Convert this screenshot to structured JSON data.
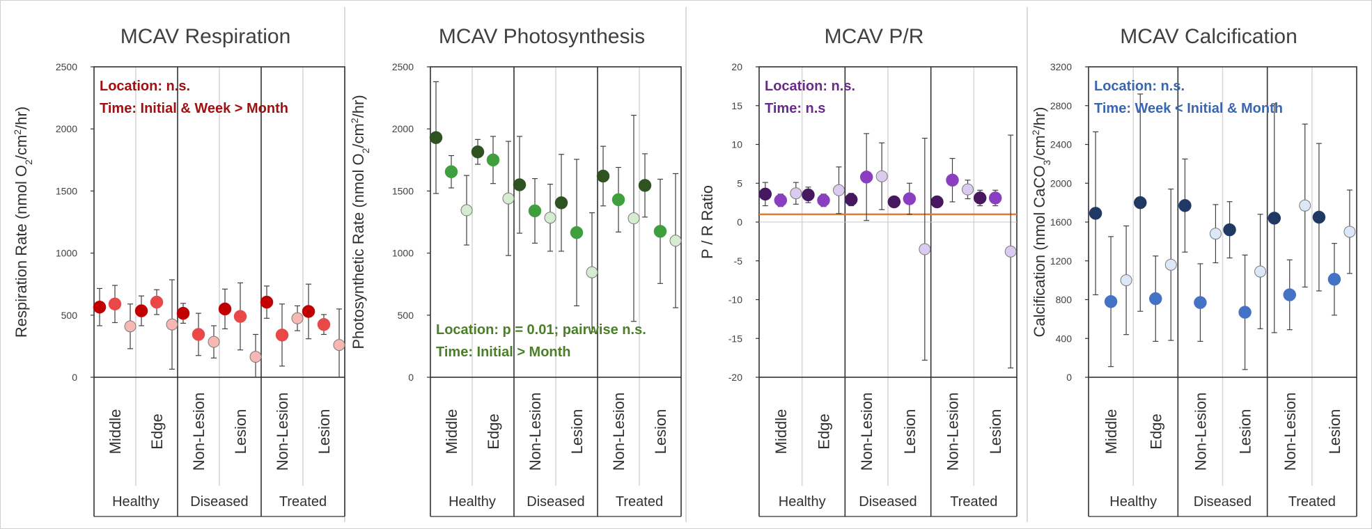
{
  "chart_data": [
    {
      "type": "scatter",
      "title": "MCAV Respiration",
      "ylabel": "Respiration Rate (nmol O",
      "ylabel_sub": "2",
      "ylabel_mid": "/cm",
      "ylabel_sup": "2",
      "ylabel_end": "/hr)",
      "ylim": [
        0,
        2500
      ],
      "yticks": [
        0,
        500,
        1000,
        1500,
        2000,
        2500
      ],
      "groups": [
        "Healthy",
        "Diseased",
        "Treated"
      ],
      "categories": [
        "Middle",
        "Edge",
        "Non-Lesion",
        "Lesion",
        "Non-Lesion",
        "Lesion"
      ],
      "colors": [
        "#c00000",
        "#e84848",
        "#f7b7b2"
      ],
      "annotations": [
        {
          "text": "Location: n.s.",
          "color": "#a01010"
        },
        {
          "text": "Time: Initial & Week > Month",
          "color": "#a01010"
        }
      ],
      "series": [
        {
          "name": "Initial",
          "values": [
            565,
            535,
            515,
            550,
            605,
            530
          ],
          "err": [
            150,
            120,
            80,
            160,
            130,
            220
          ]
        },
        {
          "name": "Week",
          "values": [
            590,
            605,
            345,
            490,
            340,
            425
          ],
          "err": [
            150,
            100,
            170,
            270,
            250,
            80
          ]
        },
        {
          "name": "Month",
          "values": [
            410,
            425,
            285,
            165,
            475,
            260
          ],
          "err": [
            180,
            360,
            130,
            180,
            100,
            290
          ]
        }
      ]
    },
    {
      "type": "scatter",
      "title": "MCAV Photosynthesis",
      "ylabel": "Photosynthetic Rate (nmol O",
      "ylabel_sub": "2",
      "ylabel_mid": "/cm",
      "ylabel_sup": "2",
      "ylabel_end": "/hr)",
      "ylim": [
        0,
        2500
      ],
      "yticks": [
        0,
        500,
        1000,
        1500,
        2000,
        2500
      ],
      "groups": [
        "Healthy",
        "Diseased",
        "Treated"
      ],
      "categories": [
        "Middle",
        "Edge",
        "Non-Lesion",
        "Lesion",
        "Non-Lesion",
        "Lesion"
      ],
      "colors": [
        "#2f5223",
        "#3f9f3f",
        "#d5ecd0"
      ],
      "annotations": [
        {
          "text": "Location: p = 0.01; pairwise n.s.",
          "color": "#4a7f28"
        },
        {
          "text": "Time: Initial > Month",
          "color": "#4a7f28"
        }
      ],
      "series": [
        {
          "name": "Initial",
          "values": [
            1930,
            1815,
            1550,
            1405,
            1620,
            1545
          ],
          "err": [
            450,
            100,
            390,
            390,
            240,
            255
          ]
        },
        {
          "name": "Week",
          "values": [
            1655,
            1750,
            1340,
            1165,
            1430,
            1175
          ],
          "err": [
            130,
            190,
            260,
            590,
            260,
            420
          ]
        },
        {
          "name": "Month",
          "values": [
            1345,
            1440,
            1285,
            845,
            1280,
            1100
          ],
          "err": [
            280,
            460,
            270,
            480,
            830,
            540
          ]
        }
      ]
    },
    {
      "type": "scatter",
      "title": "MCAV P/R",
      "ylabel": "P / R Ratio",
      "ylim": [
        -20,
        20
      ],
      "yticks": [
        -20,
        -15,
        -10,
        -5,
        0,
        5,
        10,
        15,
        20
      ],
      "groups": [
        "Healthy",
        "Diseased",
        "Treated"
      ],
      "categories": [
        "Middle",
        "Edge",
        "Non-Lesion",
        "Lesion",
        "Non-Lesion",
        "Lesion"
      ],
      "colors": [
        "#45185f",
        "#8a3fc0",
        "#dccbf0"
      ],
      "reference_line": 1,
      "reference_color": "#e07b39",
      "annotations": [
        {
          "text": "Location: n.s.",
          "color": "#6a2a8a"
        },
        {
          "text": "Time: n.s",
          "color": "#6a2a8a"
        }
      ],
      "series": [
        {
          "name": "Initial",
          "values": [
            3.6,
            3.5,
            2.9,
            2.6,
            2.6,
            3.1
          ],
          "err": [
            1.5,
            1.0,
            0.8,
            0.6,
            0.6,
            1.0
          ]
        },
        {
          "name": "Week",
          "values": [
            2.8,
            2.8,
            5.8,
            3.0,
            5.4,
            3.1
          ],
          "err": [
            0.8,
            0.8,
            5.6,
            2.0,
            2.8,
            1.0
          ]
        },
        {
          "name": "Month",
          "values": [
            3.7,
            4.1,
            5.9,
            -3.5,
            4.2,
            -3.8
          ],
          "err": [
            1.4,
            3.0,
            4.3,
            14.3,
            1.2,
            15.0
          ]
        }
      ]
    },
    {
      "type": "scatter",
      "title": "MCAV Calcification",
      "ylabel": "Calcification (nmol CaCO",
      "ylabel_sub": "3",
      "ylabel_mid": "/cm",
      "ylabel_sup": "2",
      "ylabel_end": "/hr)",
      "ylim": [
        0,
        3200
      ],
      "yticks": [
        0,
        400,
        800,
        1200,
        1600,
        2000,
        2400,
        2800,
        3200
      ],
      "groups": [
        "Healthy",
        "Diseased",
        "Treated"
      ],
      "categories": [
        "Middle",
        "Edge",
        "Non-Lesion",
        "Lesion",
        "Non-Lesion",
        "Lesion"
      ],
      "colors": [
        "#1f3864",
        "#4472c4",
        "#dce8f7"
      ],
      "annotations": [
        {
          "text": "Location: n.s.",
          "color": "#3a66b0"
        },
        {
          "text": "Time: Week < Initial & Month",
          "color": "#3a66b0"
        }
      ],
      "series": [
        {
          "name": "Initial",
          "values": [
            1690,
            1800,
            1770,
            1520,
            1640,
            1650
          ],
          "err": [
            840,
            1120,
            480,
            290,
            1180,
            760
          ]
        },
        {
          "name": "Week",
          "values": [
            780,
            810,
            770,
            670,
            850,
            1010
          ],
          "err": [
            670,
            440,
            400,
            590,
            360,
            370
          ]
        },
        {
          "name": "Month",
          "values": [
            1000,
            1160,
            1480,
            1090,
            1770,
            1500
          ],
          "err": [
            560,
            780,
            300,
            590,
            840,
            430
          ]
        }
      ]
    }
  ]
}
